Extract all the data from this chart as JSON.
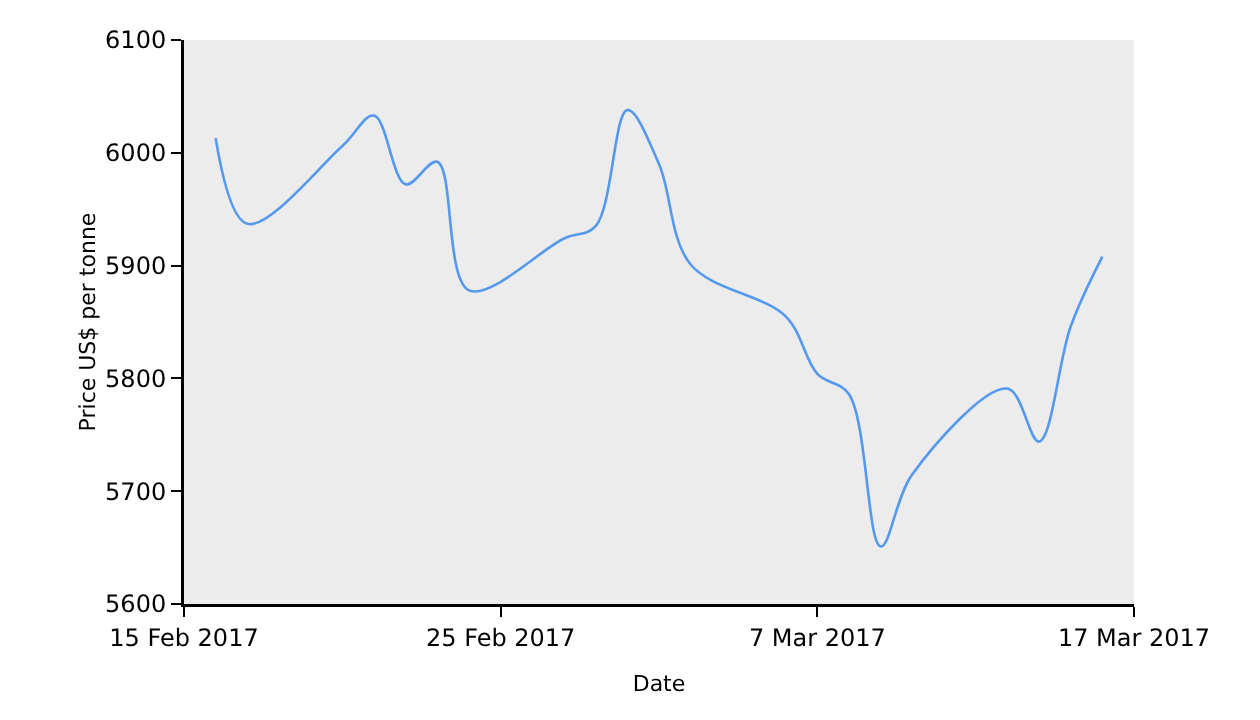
{
  "chart_data": {
    "type": "line",
    "xlabel": "Date",
    "ylabel": "Price US$ per tonne",
    "x": [
      "2017-02-16",
      "2017-02-17",
      "2017-02-20",
      "2017-02-21",
      "2017-02-22",
      "2017-02-23",
      "2017-02-24",
      "2017-02-27",
      "2017-02-28",
      "2017-03-01",
      "2017-03-02",
      "2017-03-03",
      "2017-03-06",
      "2017-03-07",
      "2017-03-08",
      "2017-03-09",
      "2017-03-10",
      "2017-03-13",
      "2017-03-14",
      "2017-03-15",
      "2017-03-16"
    ],
    "series": [
      {
        "color": "#5599ee",
        "values": [
          6013,
          5937,
          6006,
          6033,
          5972,
          5992,
          5878,
          5924,
          5935,
          6038,
          5990,
          5901,
          5855,
          5804,
          5786,
          5651,
          5715,
          5791,
          5744,
          5846,
          5908
        ]
      }
    ],
    "xlim": [
      "2017-02-15",
      "2017-03-17"
    ],
    "xticks": [
      {
        "value": "2017-02-15",
        "label": "15 Feb 2017"
      },
      {
        "value": "2017-02-25",
        "label": "25 Feb 2017"
      },
      {
        "value": "2017-03-07",
        "label": "7 Mar 2017"
      },
      {
        "value": "2017-03-17",
        "label": "17 Mar 2017"
      }
    ],
    "ylim": [
      5600,
      6100
    ],
    "yticks": [
      5600,
      5700,
      5800,
      5900,
      6000,
      6100
    ],
    "grid": false,
    "legend": false,
    "marker": "none",
    "line_style": "solid"
  }
}
